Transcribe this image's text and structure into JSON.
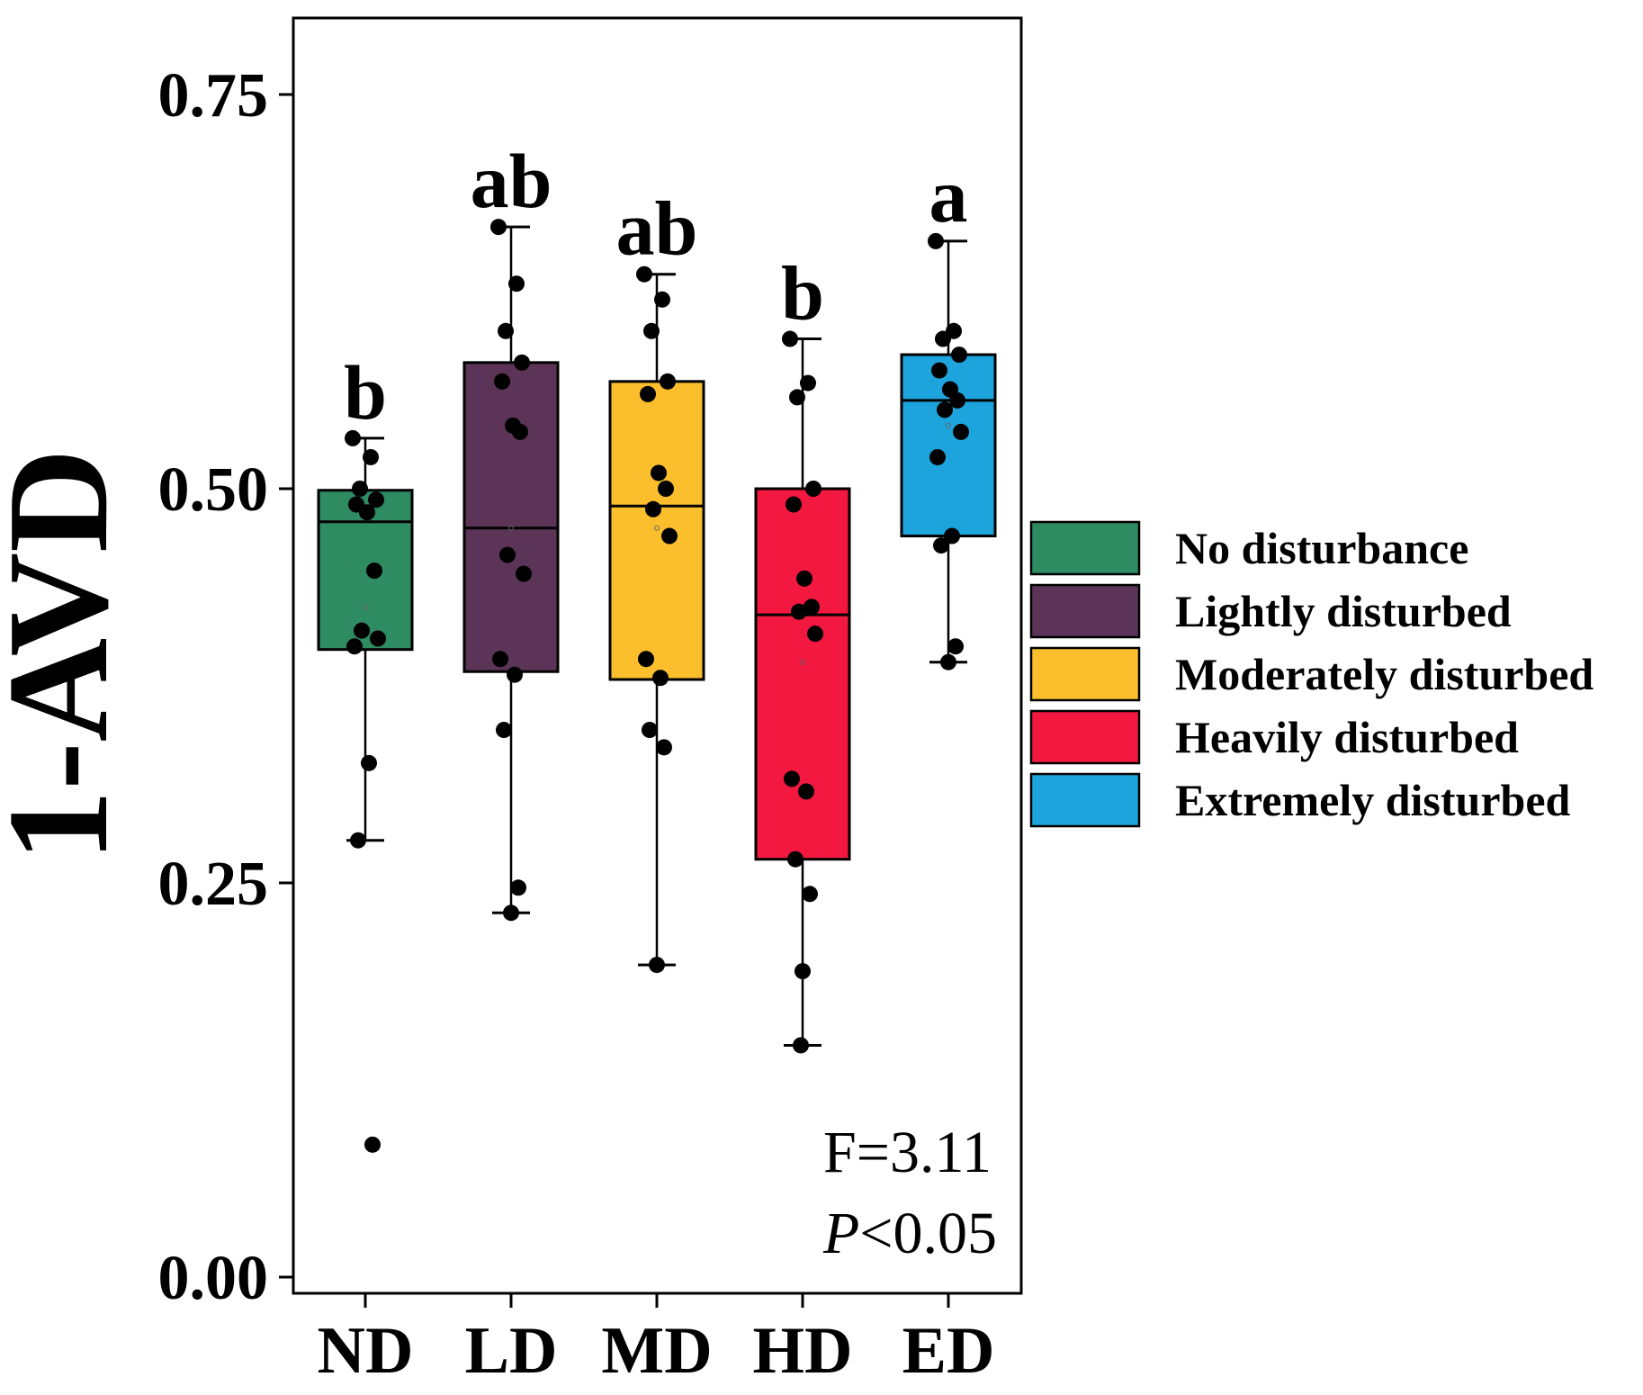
{
  "chart_data": {
    "type": "boxplot",
    "title": "",
    "xlabel": "",
    "ylabel": "1-AVD",
    "ylim": [
      -0.015,
      0.8
    ],
    "yticks": [
      0.0,
      0.25,
      0.5,
      0.75
    ],
    "ytick_labels": [
      "0.00",
      "0.25",
      "0.50",
      "0.75"
    ],
    "grid": false,
    "legend_placement": "right",
    "categories": [
      "ND",
      "LD",
      "MD",
      "HD",
      "ED"
    ],
    "series": [
      {
        "name": "No disturbance",
        "category": "ND",
        "color": "#2e8b62",
        "letter": "b",
        "box": {
          "q1": 0.398,
          "median": 0.479,
          "q3": 0.499,
          "whisker_low": 0.277,
          "whisker_high": 0.532,
          "mean": 0.425
        },
        "points": [
          0.532,
          0.52,
          0.5,
          0.493,
          0.49,
          0.485,
          0.448,
          0.41,
          0.405,
          0.4,
          0.326,
          0.277,
          0.084
        ]
      },
      {
        "name": "Lightly disturbed",
        "category": "LD",
        "color": "#5c3457",
        "letter": "ab",
        "box": {
          "q1": 0.384,
          "median": 0.475,
          "q3": 0.58,
          "whisker_low": 0.231,
          "whisker_high": 0.666,
          "mean": 0.475
        },
        "points": [
          0.666,
          0.63,
          0.6,
          0.58,
          0.568,
          0.54,
          0.536,
          0.458,
          0.446,
          0.392,
          0.382,
          0.347,
          0.247,
          0.231
        ]
      },
      {
        "name": "Moderately disturbed",
        "category": "MD",
        "color": "#fbbf2e",
        "letter": "ab",
        "box": {
          "q1": 0.379,
          "median": 0.489,
          "q3": 0.568,
          "whisker_low": 0.198,
          "whisker_high": 0.636,
          "mean": 0.475
        },
        "points": [
          0.636,
          0.62,
          0.6,
          0.568,
          0.56,
          0.51,
          0.5,
          0.487,
          0.47,
          0.392,
          0.38,
          0.347,
          0.336,
          0.198
        ]
      },
      {
        "name": "Heavily disturbed",
        "category": "HD",
        "color": "#f2183f",
        "letter": "b",
        "box": {
          "q1": 0.265,
          "median": 0.42,
          "q3": 0.5,
          "whisker_low": 0.147,
          "whisker_high": 0.595,
          "mean": 0.39
        },
        "points": [
          0.595,
          0.567,
          0.558,
          0.5,
          0.49,
          0.443,
          0.425,
          0.422,
          0.408,
          0.316,
          0.308,
          0.265,
          0.243,
          0.194,
          0.147
        ]
      },
      {
        "name": "Extremely disturbed",
        "category": "ED",
        "color": "#1ea4dc",
        "letter": "a",
        "box": {
          "q1": 0.47,
          "median": 0.556,
          "q3": 0.585,
          "whisker_low": 0.39,
          "whisker_high": 0.657,
          "mean": 0.54
        },
        "points": [
          0.657,
          0.6,
          0.595,
          0.585,
          0.575,
          0.563,
          0.556,
          0.55,
          0.536,
          0.52,
          0.47,
          0.464,
          0.4,
          0.39
        ]
      }
    ],
    "annotations": {
      "f_label": "F=3.11",
      "p_italic": "P",
      "p_rest": "<0.05"
    }
  }
}
